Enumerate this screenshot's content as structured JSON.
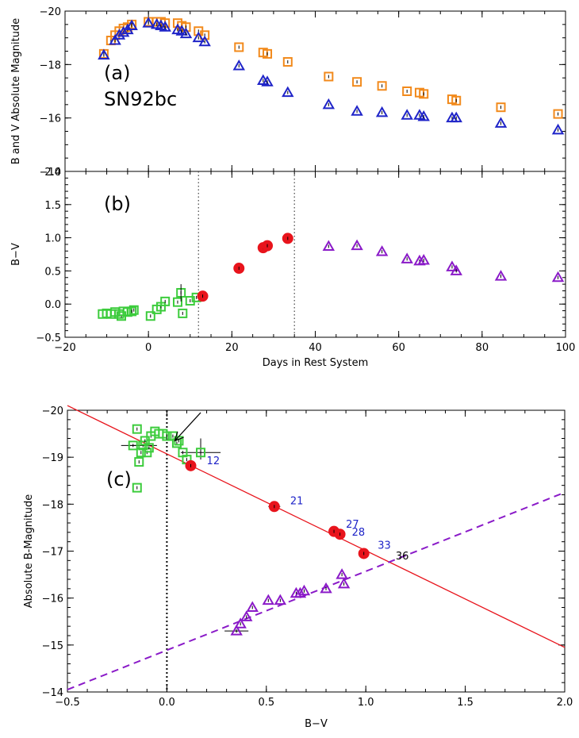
{
  "chart_data": [
    {
      "panel": "a",
      "type": "scatter",
      "panel_label": "(a)",
      "object_label": "SN92bc",
      "xlabel": "",
      "ylabel": "B and V Absolute Magnitude",
      "xlim": [
        -20,
        100
      ],
      "ylim": [
        -14,
        -20
      ],
      "y_inverted": true,
      "yticks": [
        -20,
        -18,
        -16,
        -14
      ],
      "yticklabels": [
        "−20",
        "−18",
        "−16",
        "−14"
      ],
      "series": [
        {
          "marker": "square",
          "color": "#f28a1c",
          "points": [
            [
              -10.7,
              -18.4
            ],
            [
              -9,
              -18.9
            ],
            [
              -8,
              -19.1
            ],
            [
              -7,
              -19.25
            ],
            [
              -6,
              -19.35
            ],
            [
              -5,
              -19.4
            ],
            [
              -4,
              -19.5
            ],
            [
              0,
              -19.6
            ],
            [
              2,
              -19.6
            ],
            [
              3,
              -19.6
            ],
            [
              4,
              -19.55
            ],
            [
              7,
              -19.55
            ],
            [
              8,
              -19.45
            ],
            [
              9,
              -19.4
            ],
            [
              12,
              -19.25
            ],
            [
              13.5,
              -19.1
            ],
            [
              21.7,
              -18.65
            ],
            [
              27.5,
              -18.45
            ],
            [
              28.5,
              -18.4
            ],
            [
              33.4,
              -18.1
            ],
            [
              43.2,
              -17.55
            ],
            [
              50,
              -17.35
            ],
            [
              56,
              -17.2
            ],
            [
              62,
              -17.0
            ],
            [
              65,
              -16.95
            ],
            [
              66,
              -16.9
            ],
            [
              72.8,
              -16.7
            ],
            [
              73.8,
              -16.65
            ],
            [
              84.5,
              -16.4
            ],
            [
              98.2,
              -16.15
            ]
          ]
        },
        {
          "marker": "triangle",
          "color": "#1f24c8",
          "points": [
            [
              -10.7,
              -18.35
            ],
            [
              -8,
              -18.9
            ],
            [
              -7,
              -19.1
            ],
            [
              -6,
              -19.2
            ],
            [
              -5,
              -19.3
            ],
            [
              -4,
              -19.45
            ],
            [
              0,
              -19.55
            ],
            [
              2,
              -19.5
            ],
            [
              3,
              -19.45
            ],
            [
              4,
              -19.4
            ],
            [
              7,
              -19.3
            ],
            [
              8,
              -19.25
            ],
            [
              9,
              -19.15
            ],
            [
              12,
              -19.0
            ],
            [
              13.5,
              -18.85
            ],
            [
              21.7,
              -17.95
            ],
            [
              27.5,
              -17.4
            ],
            [
              28.5,
              -17.35
            ],
            [
              33.4,
              -16.95
            ],
            [
              43.2,
              -16.5
            ],
            [
              50,
              -16.25
            ],
            [
              56,
              -16.2
            ],
            [
              62,
              -16.1
            ],
            [
              65,
              -16.1
            ],
            [
              66,
              -16.05
            ],
            [
              72.8,
              -16.0
            ],
            [
              73.8,
              -16.0
            ],
            [
              84.5,
              -15.8
            ],
            [
              98.2,
              -15.55
            ]
          ]
        }
      ]
    },
    {
      "panel": "b",
      "type": "scatter",
      "panel_label": "(b)",
      "xlabel": "Days in Rest System",
      "ylabel": "B−V",
      "xlim": [
        -20,
        100
      ],
      "ylim": [
        -0.5,
        2.0
      ],
      "xticks": [
        -20,
        0,
        20,
        40,
        60,
        80,
        100
      ],
      "xticklabels": [
        "−20",
        "0",
        "20",
        "40",
        "60",
        "80",
        "100"
      ],
      "yticks": [
        -0.5,
        0.0,
        0.5,
        1.0,
        1.5,
        2.0
      ],
      "yticklabels": [
        "−0.5",
        "0.0",
        "0.5",
        "1.0",
        "1.5",
        "2.0"
      ],
      "vlines": [
        12,
        35
      ],
      "series": [
        {
          "marker": "square",
          "color": "#3ccc3c",
          "points": [
            [
              -11,
              -0.15
            ],
            [
              -10,
              -0.14
            ],
            [
              -9,
              -0.15
            ],
            [
              -8,
              -0.12
            ],
            [
              -7,
              -0.15
            ],
            [
              -6.5,
              -0.18
            ],
            [
              -6,
              -0.11
            ],
            [
              -5,
              -0.12
            ],
            [
              -4,
              -0.11
            ],
            [
              -3.5,
              -0.09
            ],
            [
              0.5,
              -0.18
            ],
            [
              2,
              -0.08
            ],
            [
              3,
              -0.04
            ],
            [
              4,
              0.04
            ],
            [
              7,
              0.03
            ],
            [
              7.8,
              0.17
            ],
            [
              8.2,
              -0.14
            ],
            [
              10,
              0.05
            ],
            [
              11.5,
              0.1
            ]
          ]
        },
        {
          "marker": "circle",
          "color": "#e8141c",
          "points": [
            [
              13,
              0.12
            ],
            [
              21.7,
              0.54
            ],
            [
              27.5,
              0.85
            ],
            [
              28.5,
              0.88
            ],
            [
              33.4,
              0.99
            ]
          ]
        },
        {
          "marker": "triangle",
          "color": "#8a1ac8",
          "points": [
            [
              43.2,
              0.87
            ],
            [
              50,
              0.88
            ],
            [
              56,
              0.79
            ],
            [
              62,
              0.68
            ],
            [
              65,
              0.65
            ],
            [
              66,
              0.66
            ],
            [
              72.8,
              0.56
            ],
            [
              73.8,
              0.5
            ],
            [
              84.5,
              0.42
            ],
            [
              98.2,
              0.4
            ]
          ]
        }
      ]
    },
    {
      "panel": "c",
      "type": "scatter",
      "panel_label": "(c)",
      "xlabel": "B−V",
      "ylabel": "Absolute B-Magnitude",
      "xlim": [
        -0.5,
        2.0
      ],
      "ylim": [
        -14,
        -20
      ],
      "y_inverted": true,
      "xticks": [
        -0.5,
        0.0,
        0.5,
        1.0,
        1.5,
        2.0
      ],
      "xticklabels": [
        "−0.5",
        "0.0",
        "0.5",
        "1.0",
        "1.5",
        "2.0"
      ],
      "yticks": [
        -20,
        -19,
        -18,
        -17,
        -16,
        -15,
        -14
      ],
      "yticklabels": [
        "−20",
        "−19",
        "−18",
        "−17",
        "−16",
        "−15",
        "−14"
      ],
      "vline": 0.0,
      "lines": [
        {
          "style": "solid",
          "color": "#e8141c",
          "from": [
            -0.5,
            -20.1
          ],
          "to": [
            2.0,
            -14.95
          ]
        },
        {
          "style": "dashed",
          "color": "#8a1ac8",
          "from": [
            -0.5,
            -14.05
          ],
          "to": [
            2.0,
            -18.25
          ]
        }
      ],
      "series": [
        {
          "marker": "square",
          "color": "#3ccc3c",
          "points": [
            [
              -0.15,
              -19.6
            ],
            [
              -0.17,
              -19.25
            ],
            [
              -0.15,
              -18.35
            ],
            [
              -0.14,
              -18.9
            ],
            [
              -0.13,
              -19.1
            ],
            [
              -0.12,
              -19.25
            ],
            [
              -0.11,
              -19.35
            ],
            [
              -0.1,
              -19.1
            ],
            [
              -0.09,
              -19.2
            ],
            [
              -0.08,
              -19.45
            ],
            [
              -0.06,
              -19.55
            ],
            [
              -0.04,
              -19.5
            ],
            [
              -0.02,
              -19.5
            ],
            [
              0.0,
              -19.45
            ],
            [
              0.03,
              -19.45
            ],
            [
              0.05,
              -19.3
            ],
            [
              0.06,
              -19.35
            ],
            [
              0.08,
              -19.1
            ],
            [
              0.1,
              -18.95
            ],
            [
              0.17,
              -19.1
            ]
          ]
        },
        {
          "marker": "circle",
          "color": "#e8141c",
          "points": [
            [
              0.12,
              -18.82
            ],
            [
              0.54,
              -17.95
            ],
            [
              0.84,
              -17.42
            ],
            [
              0.87,
              -17.36
            ],
            [
              0.99,
              -16.95
            ]
          ]
        },
        {
          "marker": "triangle",
          "color": "#8a1ac8",
          "points": [
            [
              0.35,
              -15.3
            ],
            [
              0.37,
              -15.45
            ],
            [
              0.4,
              -15.6
            ],
            [
              0.43,
              -15.8
            ],
            [
              0.51,
              -15.95
            ],
            [
              0.57,
              -15.95
            ],
            [
              0.65,
              -16.1
            ],
            [
              0.67,
              -16.1
            ],
            [
              0.69,
              -16.15
            ],
            [
              0.8,
              -16.2
            ],
            [
              0.88,
              -16.5
            ],
            [
              0.89,
              -16.3
            ]
          ]
        }
      ],
      "annotations": [
        {
          "text": "12",
          "x": 0.2,
          "y": -18.85,
          "color": "#1f24c8"
        },
        {
          "text": "21",
          "x": 0.62,
          "y": -18.0,
          "color": "#1f24c8"
        },
        {
          "text": "27",
          "x": 0.9,
          "y": -17.5,
          "color": "#1f24c8"
        },
        {
          "text": "28",
          "x": 0.93,
          "y": -17.33,
          "color": "#1f24c8"
        },
        {
          "text": "33",
          "x": 1.06,
          "y": -17.05,
          "color": "#1f24c8"
        },
        {
          "text": "36",
          "x": 1.15,
          "y": -16.82,
          "color": "#000000"
        }
      ],
      "arrow": {
        "from": [
          0.17,
          -19.95
        ],
        "to": [
          0.04,
          -19.35
        ]
      }
    }
  ]
}
